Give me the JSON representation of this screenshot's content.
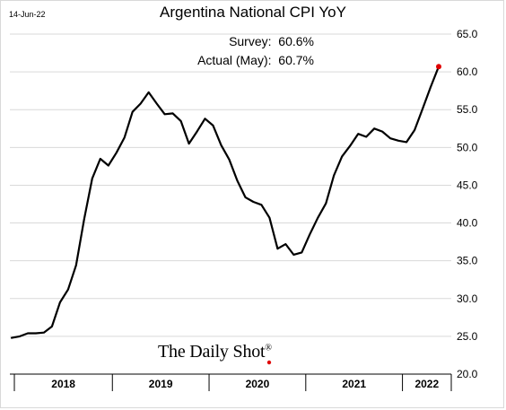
{
  "date_stamp": "14-Jun-22",
  "watermark": "The Daily Shot",
  "watermark_mark": "®",
  "annotations": {
    "survey": "Survey:  60.6%",
    "actual": "Actual (May):  60.7%"
  },
  "colors": {
    "line": "#000000",
    "highlight_point": "#e00000",
    "grid": "#d9d9d9",
    "watermark_dot": "#e00000"
  },
  "chart_data": {
    "type": "line",
    "title": "Argentina National CPI YoY",
    "xlabel": "",
    "ylabel": "",
    "ylim": [
      20,
      65
    ],
    "yticks": [
      "65.0",
      "60.0",
      "55.0",
      "50.0",
      "45.0",
      "40.0",
      "35.0",
      "30.0",
      "25.0",
      "20.0"
    ],
    "ytick_values": [
      65,
      60,
      55,
      50,
      45,
      40,
      35,
      30,
      25,
      20
    ],
    "y_axis_side": "right",
    "grid": "horizontal",
    "year_labels": [
      "2018",
      "2019",
      "2020",
      "2021",
      "2022"
    ],
    "x_range": [
      "2017-12",
      "2022-05"
    ],
    "x": [
      "2017-12",
      "2018-01",
      "2018-02",
      "2018-03",
      "2018-04",
      "2018-05",
      "2018-06",
      "2018-07",
      "2018-08",
      "2018-09",
      "2018-10",
      "2018-11",
      "2018-12",
      "2019-01",
      "2019-02",
      "2019-03",
      "2019-04",
      "2019-05",
      "2019-06",
      "2019-07",
      "2019-08",
      "2019-09",
      "2019-10",
      "2019-11",
      "2019-12",
      "2020-01",
      "2020-02",
      "2020-03",
      "2020-04",
      "2020-05",
      "2020-06",
      "2020-07",
      "2020-08",
      "2020-09",
      "2020-10",
      "2020-11",
      "2020-12",
      "2021-01",
      "2021-02",
      "2021-03",
      "2021-04",
      "2021-05",
      "2021-06",
      "2021-07",
      "2021-08",
      "2021-09",
      "2021-10",
      "2021-11",
      "2021-12",
      "2022-01",
      "2022-02",
      "2022-03",
      "2022-04",
      "2022-05"
    ],
    "values": [
      24.8,
      25.0,
      25.4,
      25.4,
      25.5,
      26.3,
      29.5,
      31.2,
      34.4,
      40.5,
      45.9,
      48.5,
      47.6,
      49.3,
      51.3,
      54.7,
      55.8,
      57.3,
      55.8,
      54.4,
      54.5,
      53.5,
      50.5,
      52.1,
      53.8,
      52.9,
      50.3,
      48.4,
      45.6,
      43.4,
      42.8,
      42.4,
      40.7,
      36.6,
      37.2,
      35.8,
      36.1,
      38.5,
      40.7,
      42.6,
      46.3,
      48.8,
      50.2,
      51.8,
      51.4,
      52.5,
      52.1,
      51.2,
      50.9,
      50.7,
      52.3,
      55.1,
      58.0,
      60.7
    ],
    "highlight": {
      "x": "2022-05",
      "y": 60.7
    }
  }
}
